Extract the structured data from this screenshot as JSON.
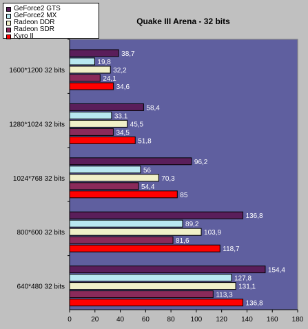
{
  "chart_data": {
    "type": "bar",
    "orientation": "horizontal",
    "title": "Quake III Arena - 32 bits",
    "xlabel": "",
    "ylabel": "",
    "xlim": [
      0,
      180
    ],
    "x_ticks": [
      0,
      20,
      40,
      60,
      80,
      100,
      120,
      140,
      160,
      180
    ],
    "grid": false,
    "legend_position": "top-left",
    "categories": [
      "1600*1200 32 bits",
      "1280*1024 32 bits",
      "1024*768 32 bits",
      "800*600 32 bits",
      "640*480 32 bits"
    ],
    "series": [
      {
        "name": "GeForce2 GTS",
        "color": "#5a1e5a",
        "values": [
          38.7,
          58.4,
          96.2,
          136.8,
          154.4
        ],
        "labels": [
          "38,7",
          "58,4",
          "96,2",
          "136,8",
          "154,4"
        ]
      },
      {
        "name": "GeForce2 MX",
        "color": "#b8e8f0",
        "values": [
          19.8,
          33.1,
          56,
          89.2,
          127.8
        ],
        "labels": [
          "19,8",
          "33,1",
          "56",
          "89,2",
          "127,8"
        ]
      },
      {
        "name": "Radeon DDR",
        "color": "#f0f0c8",
        "values": [
          32.2,
          45.5,
          70.3,
          103.9,
          131.1
        ],
        "labels": [
          "32,2",
          "45,5",
          "70,3",
          "103,9",
          "131,1"
        ]
      },
      {
        "name": "Radeon SDR",
        "color": "#8a2a5a",
        "values": [
          24.1,
          34.5,
          54.4,
          81.6,
          113.3
        ],
        "labels": [
          "24,1",
          "34,5",
          "54,4",
          "81,6",
          "113,3"
        ]
      },
      {
        "name": "Kyro II",
        "color": "#ff0000",
        "values": [
          34.6,
          51.8,
          85,
          118.7,
          136.8
        ],
        "labels": [
          "34,6",
          "51,8",
          "85",
          "118,7",
          "136,8"
        ]
      }
    ],
    "colors": {
      "plot_background": "#5f5f9f",
      "page_background": "#c0c0c0",
      "value_label": "#ffffff"
    }
  }
}
